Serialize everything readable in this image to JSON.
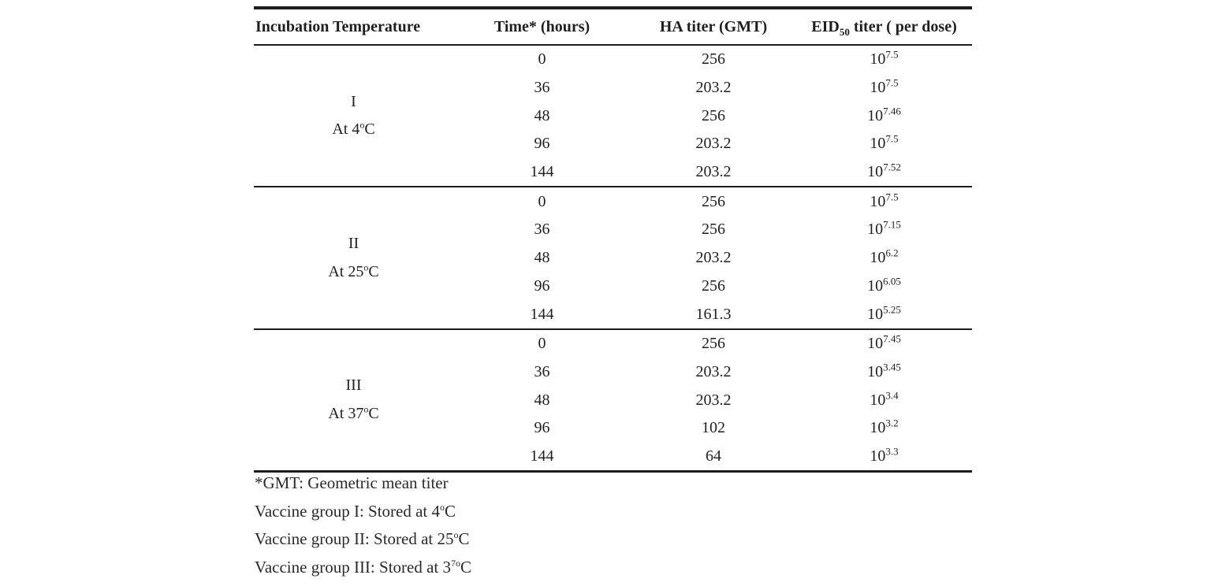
{
  "table": {
    "headers": {
      "col1": "Incubation Temperature",
      "col2": "Time* (hours)",
      "col3": "HA titer (GMT)",
      "col4_pre": "EID",
      "col4_sub": "50",
      "col4_post": " titer ( per dose)"
    },
    "groups": [
      {
        "numeral": "I",
        "temp_pre": "At 4",
        "temp_sup": "o",
        "temp_post": "C",
        "rows": [
          {
            "time": "0",
            "ha": "256",
            "base": "10",
            "exp": "7.5"
          },
          {
            "time": "36",
            "ha": "203.2",
            "base": "10",
            "exp": "7.5"
          },
          {
            "time": "48",
            "ha": "256",
            "base": "10",
            "exp": "7.46"
          },
          {
            "time": "96",
            "ha": "203.2",
            "base": "10",
            "exp": "7.5"
          },
          {
            "time": "144",
            "ha": "203.2",
            "base": "10",
            "exp": "7.52"
          }
        ]
      },
      {
        "numeral": "II",
        "temp_pre": "At 25",
        "temp_sup": "o",
        "temp_post": "C",
        "rows": [
          {
            "time": "0",
            "ha": "256",
            "base": "10",
            "exp": "7.5"
          },
          {
            "time": "36",
            "ha": "256",
            "base": "10",
            "exp": "7.15"
          },
          {
            "time": "48",
            "ha": "203.2",
            "base": "10",
            "exp": "6.2"
          },
          {
            "time": "96",
            "ha": "256",
            "base": "10",
            "exp": "6.05"
          },
          {
            "time": "144",
            "ha": "161.3",
            "base": "10",
            "exp": "5.25"
          }
        ]
      },
      {
        "numeral": "III",
        "temp_pre": "At 37",
        "temp_sup": "o",
        "temp_post": "C",
        "rows": [
          {
            "time": "0",
            "ha": "256",
            "base": "10",
            "exp": "7.45"
          },
          {
            "time": "36",
            "ha": "203.2",
            "base": "10",
            "exp": "3.45"
          },
          {
            "time": "48",
            "ha": "203.2",
            "base": "10",
            "exp": "3.4"
          },
          {
            "time": "96",
            "ha": "102",
            "base": "10",
            "exp": "3.2"
          },
          {
            "time": "144",
            "ha": "64",
            "base": "10",
            "exp": "3.3"
          }
        ]
      }
    ],
    "footnotes": [
      {
        "pre": "*GMT: Geometric mean titer",
        "sup": "",
        "post": ""
      },
      {
        "pre": "Vaccine group I: Stored at 4",
        "sup": "o",
        "post": "C"
      },
      {
        "pre": "Vaccine group II: Stored at 25",
        "sup": "o",
        "post": "C"
      },
      {
        "pre": "Vaccine group III: Stored at 3",
        "sup": "7o",
        "post": "C"
      }
    ]
  }
}
